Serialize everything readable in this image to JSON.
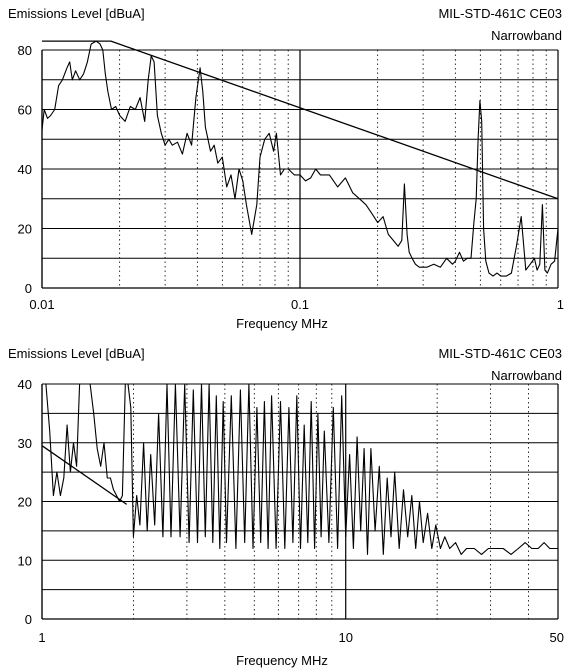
{
  "chart_data": [
    {
      "type": "line",
      "title": "MIL-STD-461C CE03",
      "subtitle": "Narrowband",
      "ylabel": "Emissions Level [dBuA]",
      "xlabel": "Frequency MHz",
      "xscale": "log",
      "xlim": [
        0.01,
        1
      ],
      "ylim": [
        0,
        80
      ],
      "x_tick_labels": [
        "0.01",
        "0.1",
        "1"
      ],
      "y_ticks": [
        0,
        20,
        40,
        60,
        80
      ],
      "y_tick_labels": [
        "0",
        "20",
        "40",
        "60",
        "80"
      ],
      "grid": "on",
      "series": [
        {
          "role": "limit",
          "x": [
            0.01,
            0.0185,
            1.0
          ],
          "y": [
            83,
            83,
            30
          ]
        },
        {
          "role": "measured",
          "x": [
            0.01,
            0.0102,
            0.0105,
            0.0108,
            0.0112,
            0.0116,
            0.012,
            0.0125,
            0.0128,
            0.0131,
            0.0135,
            0.014,
            0.0145,
            0.015,
            0.0155,
            0.0162,
            0.0168,
            0.0172,
            0.0176,
            0.018,
            0.0186,
            0.0193,
            0.02,
            0.021,
            0.022,
            0.023,
            0.024,
            0.025,
            0.0258,
            0.0265,
            0.0272,
            0.028,
            0.029,
            0.03,
            0.031,
            0.032,
            0.0335,
            0.035,
            0.0365,
            0.038,
            0.0395,
            0.041,
            0.042,
            0.043,
            0.044,
            0.045,
            0.0465,
            0.048,
            0.05,
            0.052,
            0.054,
            0.056,
            0.058,
            0.06,
            0.062,
            0.065,
            0.068,
            0.07,
            0.073,
            0.076,
            0.079,
            0.081,
            0.084,
            0.087,
            0.09,
            0.095,
            0.1,
            0.105,
            0.11,
            0.115,
            0.12,
            0.13,
            0.14,
            0.15,
            0.16,
            0.17,
            0.18,
            0.19,
            0.2,
            0.21,
            0.22,
            0.23,
            0.24,
            0.248,
            0.254,
            0.26,
            0.265,
            0.272,
            0.28,
            0.29,
            0.31,
            0.33,
            0.35,
            0.37,
            0.39,
            0.4,
            0.415,
            0.43,
            0.445,
            0.46,
            0.472,
            0.482,
            0.49,
            0.498,
            0.506,
            0.515,
            0.525,
            0.54,
            0.56,
            0.58,
            0.6,
            0.63,
            0.66,
            0.69,
            0.72,
            0.75,
            0.78,
            0.81,
            0.83,
            0.85,
            0.87,
            0.89,
            0.91,
            0.94,
            0.97,
            1.0
          ],
          "y": [
            53,
            60,
            57,
            58,
            60,
            68,
            70,
            74,
            76,
            70,
            73,
            70,
            72,
            76,
            82,
            83,
            82,
            80,
            72,
            66,
            60,
            61,
            58,
            56,
            61,
            60,
            64,
            56,
            70,
            78,
            76,
            58,
            52,
            48,
            50,
            48,
            49,
            45,
            52,
            48,
            64,
            74,
            66,
            54,
            50,
            46,
            48,
            42,
            44,
            34,
            38,
            30,
            40,
            36,
            28,
            18,
            28,
            44,
            50,
            52,
            46,
            52,
            38,
            40,
            40,
            38,
            38,
            36,
            37,
            40,
            38,
            38,
            34,
            37,
            32,
            30,
            28,
            25,
            22,
            24,
            18,
            16,
            14,
            16,
            35,
            18,
            12,
            10,
            8,
            7,
            7,
            8,
            7,
            10,
            8,
            9,
            12,
            9,
            10,
            10,
            22,
            30,
            50,
            63,
            56,
            20,
            9,
            5,
            4,
            5,
            4,
            4,
            5,
            14,
            24,
            6,
            8,
            10,
            6,
            8,
            28,
            6,
            5,
            8,
            9,
            20
          ]
        }
      ]
    },
    {
      "type": "line",
      "title": "MIL-STD-461C CE03",
      "subtitle": "Narrowband",
      "ylabel": "Emissions Level [dBuA]",
      "xlabel": "Frequency MHz",
      "xscale": "log",
      "xlim": [
        1,
        50
      ],
      "ylim": [
        0,
        40
      ],
      "x_tick_labels": [
        "1",
        "10",
        "50"
      ],
      "y_ticks": [
        0,
        10,
        20,
        30,
        40
      ],
      "y_tick_labels": [
        "0",
        "10",
        "20",
        "30",
        "40"
      ],
      "grid": "on",
      "series": [
        {
          "role": "limit",
          "x": [
            1.0,
            1.9
          ],
          "y": [
            29.5,
            19.5
          ]
        },
        {
          "role": "measured",
          "x": [
            1.0,
            1.03,
            1.06,
            1.09,
            1.12,
            1.15,
            1.18,
            1.21,
            1.24,
            1.27,
            1.3,
            1.33,
            1.36,
            1.4,
            1.44,
            1.48,
            1.52,
            1.56,
            1.6,
            1.64,
            1.68,
            1.72,
            1.76,
            1.8,
            1.84,
            1.88,
            1.92,
            1.96,
            2.0,
            2.05,
            2.1,
            2.16,
            2.22,
            2.28,
            2.35,
            2.42,
            2.5,
            2.58,
            2.66,
            2.75,
            2.85,
            2.95,
            3.05,
            3.15,
            3.25,
            3.35,
            3.45,
            3.55,
            3.65,
            3.75,
            3.85,
            3.95,
            4.05,
            4.2,
            4.35,
            4.5,
            4.65,
            4.8,
            4.95,
            5.1,
            5.25,
            5.4,
            5.55,
            5.7,
            5.9,
            6.1,
            6.3,
            6.5,
            6.7,
            6.9,
            7.1,
            7.3,
            7.5,
            7.7,
            7.9,
            8.1,
            8.3,
            8.5,
            8.8,
            9.1,
            9.4,
            9.7,
            10.0,
            10.3,
            10.6,
            10.9,
            11.2,
            11.5,
            11.8,
            12.1,
            12.5,
            12.9,
            13.3,
            13.7,
            14.1,
            14.5,
            15.0,
            15.5,
            16.0,
            16.5,
            17.0,
            17.5,
            18.0,
            18.6,
            19.2,
            19.8,
            20.5,
            21.2,
            22.0,
            23.0,
            24.0,
            25.0,
            26.5,
            28.0,
            29.5,
            31.0,
            33.0,
            35.0,
            37.0,
            39.0,
            41.0,
            43.0,
            45.0,
            47.0,
            49.0,
            50.0
          ],
          "y": [
            40,
            40,
            32,
            21,
            25,
            21,
            24,
            33,
            25,
            30,
            26,
            40,
            40,
            40,
            40,
            35,
            29,
            26,
            30,
            24,
            24,
            22,
            21,
            20,
            21,
            40,
            40,
            36,
            14,
            21,
            16,
            30,
            15,
            28,
            16,
            35,
            14,
            40,
            14,
            40,
            14,
            40,
            13,
            39,
            13,
            40,
            14,
            40,
            13,
            38,
            12,
            37,
            13,
            38,
            12,
            39,
            13,
            40,
            12,
            36,
            13,
            37,
            12,
            38,
            12,
            37,
            12,
            36,
            13,
            38,
            12,
            33,
            13,
            37,
            12,
            35,
            14,
            32,
            13,
            36,
            12,
            38,
            14,
            28,
            12,
            31,
            15,
            29,
            11,
            29,
            15,
            26,
            11,
            24,
            14,
            25,
            12,
            22,
            14,
            21,
            12,
            20,
            13,
            18,
            12,
            16,
            12,
            14,
            12,
            13,
            11,
            12,
            12,
            11,
            12,
            12,
            12,
            11,
            12,
            13,
            12,
            12,
            13,
            12,
            12,
            12
          ]
        }
      ]
    }
  ],
  "panels": [
    {
      "ylabel": "Emissions Level [dBuA]",
      "title": "MIL-STD-461C CE03",
      "subtitle": "Narrowband",
      "xlabel": "Frequency MHz"
    },
    {
      "ylabel": "Emissions Level [dBuA]",
      "title": "MIL-STD-461C CE03",
      "subtitle": "Narrowband",
      "xlabel": "Frequency MHz"
    }
  ]
}
